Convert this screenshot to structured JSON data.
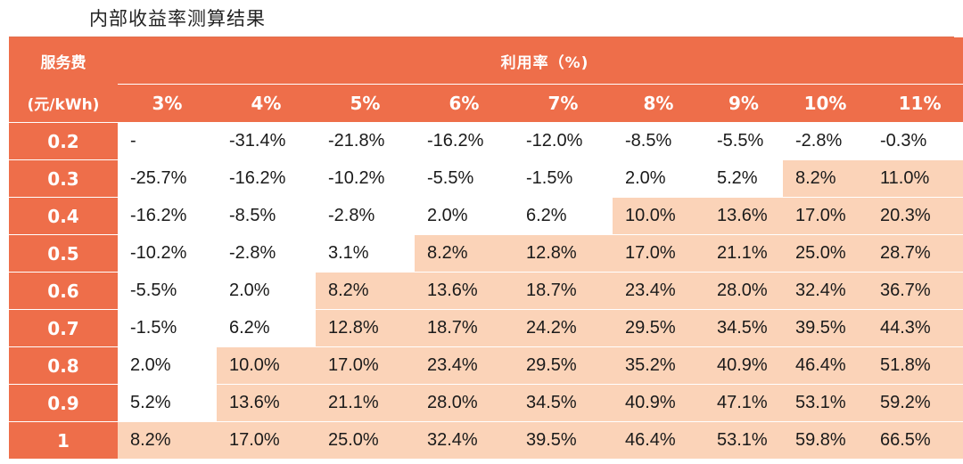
{
  "title": "内部收益率测算结果",
  "table": {
    "corner_label_line1": "服务费",
    "corner_label_line2": "(元/kWh)",
    "utilization_label": "利用率（%)",
    "columns": [
      "3%",
      "4%",
      "5%",
      "6%",
      "7%",
      "8%",
      "9%",
      "10%",
      "11%"
    ],
    "rows": [
      {
        "fee": "0.2",
        "values": [
          "-",
          "-31.4%",
          "-21.8%",
          "-16.2%",
          "-12.0%",
          "-8.5%",
          "-5.5%",
          "-2.8%",
          "-0.3%"
        ],
        "shaded_from": 9
      },
      {
        "fee": "0.3",
        "values": [
          "-25.7%",
          "-16.2%",
          "-10.2%",
          "-5.5%",
          "-1.5%",
          "2.0%",
          "5.2%",
          "8.2%",
          "11.0%"
        ],
        "shaded_from": 7
      },
      {
        "fee": "0.4",
        "values": [
          "-16.2%",
          "-8.5%",
          "-2.8%",
          "2.0%",
          "6.2%",
          "10.0%",
          "13.6%",
          "17.0%",
          "20.3%"
        ],
        "shaded_from": 5
      },
      {
        "fee": "0.5",
        "values": [
          "-10.2%",
          "-2.8%",
          "3.1%",
          "8.2%",
          "12.8%",
          "17.0%",
          "21.1%",
          "25.0%",
          "28.7%"
        ],
        "shaded_from": 3
      },
      {
        "fee": "0.6",
        "values": [
          "-5.5%",
          "2.0%",
          "8.2%",
          "13.6%",
          "18.7%",
          "23.4%",
          "28.0%",
          "32.4%",
          "36.7%"
        ],
        "shaded_from": 2
      },
      {
        "fee": "0.7",
        "values": [
          "-1.5%",
          "6.2%",
          "12.8%",
          "18.7%",
          "24.2%",
          "29.5%",
          "34.5%",
          "39.5%",
          "44.3%"
        ],
        "shaded_from": 2
      },
      {
        "fee": "0.8",
        "values": [
          "2.0%",
          "10.0%",
          "17.0%",
          "23.4%",
          "29.5%",
          "35.2%",
          "40.9%",
          "46.4%",
          "51.8%"
        ],
        "shaded_from": 1
      },
      {
        "fee": "0.9",
        "values": [
          "5.2%",
          "13.6%",
          "21.1%",
          "28.0%",
          "34.5%",
          "40.9%",
          "47.1%",
          "53.1%",
          "59.2%"
        ],
        "shaded_from": 1
      },
      {
        "fee": "1",
        "values": [
          "8.2%",
          "17.0%",
          "25.0%",
          "32.4%",
          "39.5%",
          "46.4%",
          "53.1%",
          "59.8%",
          "66.5%"
        ],
        "shaded_from": 0
      }
    ]
  },
  "colors": {
    "header_orange": "#ee6e4a",
    "shade_peach": "#fbd3b8",
    "text": "#1a1a1a"
  }
}
